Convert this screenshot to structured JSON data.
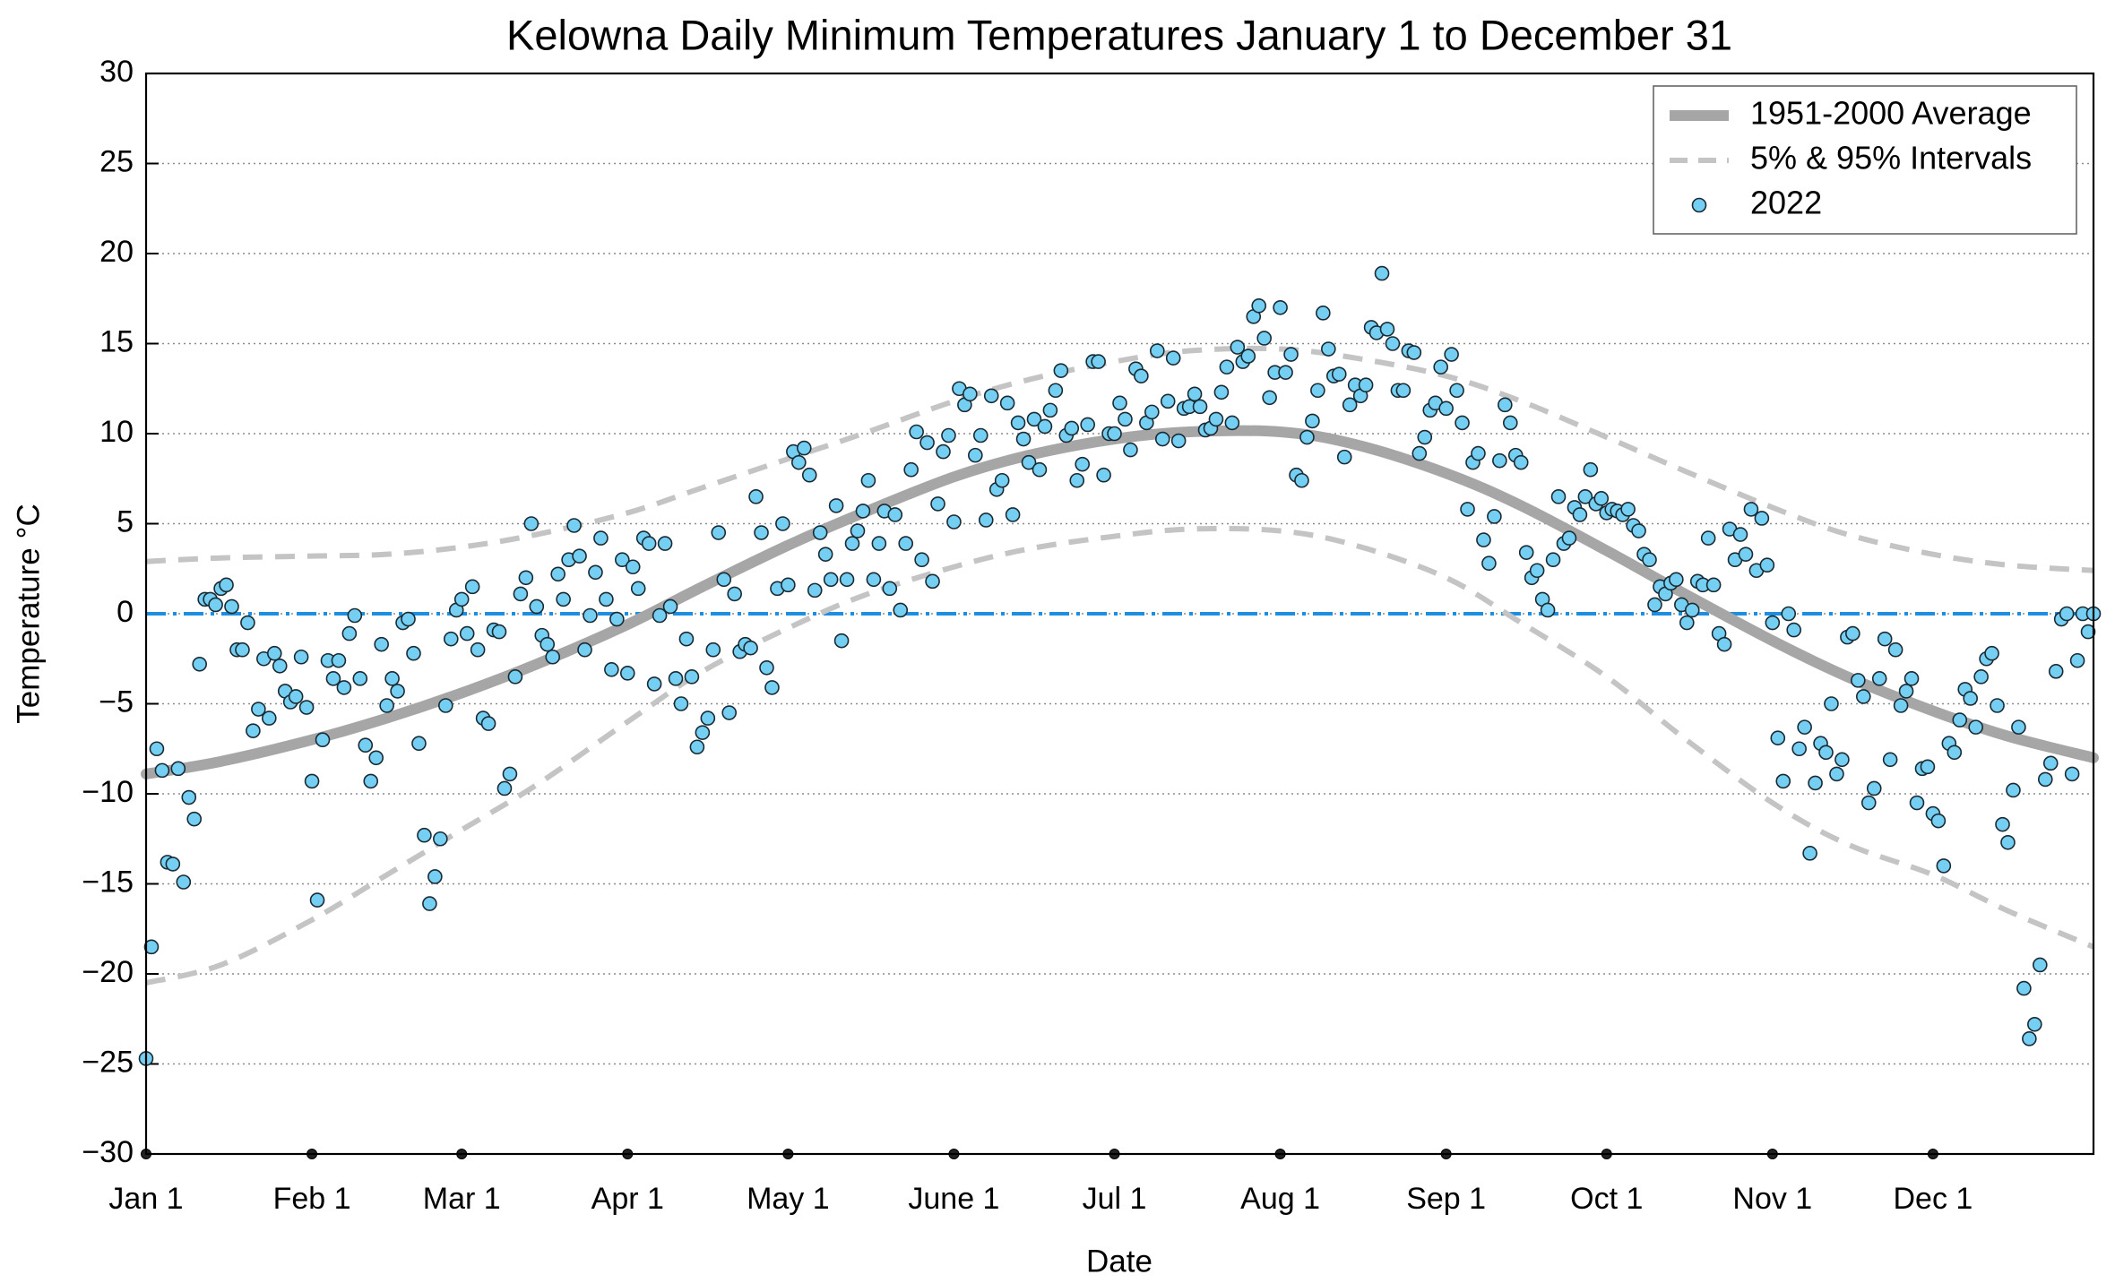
{
  "chart_data": {
    "type": "scatter",
    "title": "Kelowna Daily Minimum Temperatures January 1 to December 31",
    "x_label": "Date",
    "y_label": "Temperature °C",
    "xlim": [
      1,
      365
    ],
    "ylim": [
      -30,
      30
    ],
    "xticks": [
      {
        "value": 1,
        "label": "Jan 1"
      },
      {
        "value": 32,
        "label": "Feb 1"
      },
      {
        "value": 60,
        "label": "Mar 1"
      },
      {
        "value": 91,
        "label": "Apr 1"
      },
      {
        "value": 121,
        "label": "May 1"
      },
      {
        "value": 152,
        "label": "June 1"
      },
      {
        "value": 182,
        "label": "Jul 1"
      },
      {
        "value": 213,
        "label": "Aug 1"
      },
      {
        "value": 244,
        "label": "Sep 1"
      },
      {
        "value": 274,
        "label": "Oct 1"
      },
      {
        "value": 305,
        "label": "Nov 1"
      },
      {
        "value": 335,
        "label": "Dec 1"
      }
    ],
    "yticks": [
      {
        "value": -30,
        "label": "−30"
      },
      {
        "value": -25,
        "label": "−25"
      },
      {
        "value": -20,
        "label": "−20"
      },
      {
        "value": -15,
        "label": "−15"
      },
      {
        "value": -10,
        "label": "−10"
      },
      {
        "value": -5,
        "label": "−5"
      },
      0,
      5,
      10,
      15,
      20,
      25,
      30
    ],
    "grid": true,
    "legend": "upper right",
    "reference_line": {
      "value": 0,
      "color": "#1e8fe0"
    },
    "series": [
      {
        "name": "1951-2000 Average",
        "kind": "line",
        "color": "#a6a6a6",
        "x": [
          1,
          15,
          32,
          46,
          60,
          74,
          91,
          105,
          121,
          135,
          152,
          166,
          182,
          196,
          213,
          227,
          244,
          258,
          274,
          288,
          305,
          319,
          335,
          349,
          365
        ],
        "values": [
          -8.9,
          -8.2,
          -7.0,
          -5.8,
          -4.4,
          -2.8,
          -0.6,
          1.5,
          3.8,
          5.6,
          7.6,
          8.8,
          9.7,
          10.1,
          10.1,
          9.4,
          7.8,
          6.0,
          3.5,
          1.2,
          -1.5,
          -3.5,
          -5.4,
          -6.8,
          -8.0
        ]
      },
      {
        "name": "5% & 95% Intervals",
        "kind": "band-lines",
        "color": "#c4c4c4",
        "x": [
          1,
          15,
          32,
          46,
          60,
          74,
          91,
          105,
          121,
          135,
          152,
          166,
          182,
          196,
          213,
          227,
          244,
          258,
          274,
          288,
          305,
          319,
          335,
          349,
          365
        ],
        "upper": [
          2.9,
          3.1,
          3.2,
          3.3,
          3.7,
          4.4,
          5.6,
          7.0,
          8.6,
          10.0,
          11.8,
          13.0,
          14.0,
          14.6,
          14.7,
          14.2,
          13.2,
          11.8,
          9.8,
          8.0,
          5.9,
          4.4,
          3.3,
          2.7,
          2.4
        ],
        "lower": [
          -20.5,
          -19.5,
          -17.0,
          -14.5,
          -12.0,
          -9.5,
          -6.0,
          -3.2,
          -0.8,
          1.0,
          2.6,
          3.6,
          4.3,
          4.7,
          4.6,
          3.8,
          2.0,
          -0.5,
          -3.5,
          -6.8,
          -10.5,
          -12.8,
          -14.5,
          -16.5,
          -18.5
        ]
      },
      {
        "name": "2022",
        "kind": "points",
        "color": "#74cff2",
        "x": [
          1,
          2,
          3,
          4,
          5,
          6,
          7,
          8,
          9,
          10,
          11,
          12,
          13,
          14,
          15,
          16,
          17,
          18,
          19,
          20,
          21,
          22,
          23,
          24,
          25,
          26,
          27,
          28,
          29,
          30,
          31,
          32,
          33,
          34,
          35,
          36,
          37,
          38,
          39,
          40,
          41,
          42,
          43,
          44,
          45,
          46,
          47,
          48,
          49,
          50,
          51,
          52,
          53,
          54,
          55,
          56,
          57,
          58,
          59,
          60,
          61,
          62,
          63,
          64,
          65,
          66,
          67,
          68,
          69,
          70,
          71,
          72,
          73,
          74,
          75,
          76,
          77,
          78,
          79,
          80,
          81,
          82,
          83,
          84,
          85,
          86,
          87,
          88,
          89,
          90,
          91,
          92,
          93,
          94,
          95,
          96,
          97,
          98,
          99,
          100,
          101,
          102,
          103,
          104,
          105,
          106,
          107,
          108,
          109,
          110,
          111,
          112,
          113,
          114,
          115,
          116,
          117,
          118,
          119,
          120,
          121,
          122,
          123,
          124,
          125,
          126,
          127,
          128,
          129,
          130,
          131,
          132,
          133,
          134,
          135,
          136,
          137,
          138,
          139,
          140,
          141,
          142,
          143,
          144,
          145,
          146,
          147,
          148,
          149,
          150,
          151,
          152,
          153,
          154,
          155,
          156,
          157,
          158,
          159,
          160,
          161,
          162,
          163,
          164,
          165,
          166,
          167,
          168,
          169,
          170,
          171,
          172,
          173,
          174,
          175,
          176,
          177,
          178,
          179,
          180,
          181,
          182,
          183,
          184,
          185,
          186,
          187,
          188,
          189,
          190,
          191,
          192,
          193,
          194,
          195,
          196,
          197,
          198,
          199,
          200,
          201,
          202,
          203,
          204,
          205,
          206,
          207,
          208,
          209,
          210,
          211,
          212,
          213,
          214,
          215,
          216,
          217,
          218,
          219,
          220,
          221,
          222,
          223,
          224,
          225,
          226,
          227,
          228,
          229,
          230,
          231,
          232,
          233,
          234,
          235,
          236,
          237,
          238,
          239,
          240,
          241,
          242,
          243,
          244,
          245,
          246,
          247,
          248,
          249,
          250,
          251,
          252,
          253,
          254,
          255,
          256,
          257,
          258,
          259,
          260,
          261,
          262,
          263,
          264,
          265,
          266,
          267,
          268,
          269,
          270,
          271,
          272,
          273,
          274,
          275,
          276,
          277,
          278,
          279,
          280,
          281,
          282,
          283,
          284,
          285,
          286,
          287,
          288,
          289,
          290,
          291,
          292,
          293,
          294,
          295,
          296,
          297,
          298,
          299,
          300,
          301,
          302,
          303,
          304,
          305,
          306,
          307,
          308,
          309,
          310,
          311,
          312,
          313,
          314,
          315,
          316,
          317,
          318,
          319,
          320,
          321,
          322,
          323,
          324,
          325,
          326,
          327,
          328,
          329,
          330,
          331,
          332,
          333,
          334,
          335,
          336,
          337,
          338,
          339,
          340,
          341,
          342,
          343,
          344,
          345,
          346,
          347,
          348,
          349,
          350,
          351,
          352,
          353,
          354,
          355,
          356,
          357,
          358,
          359,
          360,
          361,
          362,
          363,
          364,
          365
        ],
        "values": [
          -24.7,
          -18.5,
          -7.5,
          -8.7,
          -13.8,
          -13.9,
          -8.6,
          -14.9,
          -10.2,
          -11.4,
          -2.8,
          0.8,
          0.8,
          0.5,
          1.4,
          1.6,
          0.4,
          -2.0,
          -2.0,
          -0.5,
          -6.5,
          -5.3,
          -2.5,
          -5.8,
          -2.2,
          -2.9,
          -4.3,
          -4.9,
          -4.6,
          -2.4,
          -5.2,
          -9.3,
          -15.9,
          -7.0,
          -2.6,
          -3.6,
          -2.6,
          -4.1,
          -1.1,
          -0.1,
          -3.6,
          -7.3,
          -9.3,
          -8.0,
          -1.7,
          -5.1,
          -3.6,
          -4.3,
          -0.5,
          -0.3,
          -2.2,
          -7.2,
          -12.3,
          -16.1,
          -14.6,
          -12.5,
          -5.1,
          -1.4,
          0.2,
          0.8,
          -1.1,
          1.5,
          -2.0,
          -5.8,
          -6.1,
          -0.9,
          -1.0,
          -9.7,
          -8.9,
          -3.5,
          1.1,
          2.0,
          5.0,
          0.4,
          -1.2,
          -1.7,
          -2.4,
          2.2,
          0.8,
          3.0,
          4.9,
          3.2,
          -2.0,
          -0.1,
          2.3,
          4.2,
          0.8,
          -3.1,
          -0.3,
          3.0,
          -3.3,
          2.6,
          1.4,
          4.2,
          3.9,
          -3.9,
          -0.1,
          3.9,
          0.4,
          -3.6,
          -5.0,
          -1.4,
          -3.5,
          -7.4,
          -6.6,
          -5.8,
          -2.0,
          4.5,
          1.9,
          -5.5,
          1.1,
          -2.1,
          -1.7,
          -1.9,
          6.5,
          4.5,
          -3.0,
          -4.1,
          1.4,
          5.0,
          1.6,
          9.0,
          8.4,
          9.2,
          7.7,
          1.3,
          4.5,
          3.3,
          1.9,
          6.0,
          -1.5,
          1.9,
          3.9,
          4.6,
          5.7,
          7.4,
          1.9,
          3.9,
          5.7,
          1.4,
          5.5,
          0.2,
          3.9,
          8.0,
          10.1,
          3.0,
          9.5,
          1.8,
          6.1,
          9.0,
          9.9,
          5.1,
          12.5,
          11.6,
          12.2,
          8.8,
          9.9,
          5.2,
          12.1,
          6.9,
          7.4,
          11.7,
          5.5,
          10.6,
          9.7,
          8.4,
          10.8,
          8.0,
          10.4,
          11.3,
          12.4,
          13.5,
          9.9,
          10.3,
          7.4,
          8.3,
          10.5,
          14.0,
          14.0,
          7.7,
          10.0,
          10.0,
          11.7,
          10.8,
          9.1,
          13.6,
          13.2,
          10.6,
          11.2,
          14.6,
          9.7,
          11.8,
          14.2,
          9.6,
          11.4,
          11.5,
          12.2,
          11.5,
          10.2,
          10.3,
          10.8,
          12.3,
          13.7,
          10.6,
          14.8,
          14.0,
          14.3,
          16.5,
          17.1,
          15.3,
          12.0,
          13.4,
          17.0,
          13.4,
          14.4,
          7.7,
          7.4,
          9.8,
          10.7,
          12.4,
          16.7,
          14.7,
          13.2,
          13.3,
          8.7,
          11.6,
          12.7,
          12.1,
          12.7,
          15.9,
          15.6,
          18.9,
          15.8,
          15.0,
          12.4,
          12.4,
          14.6,
          14.5,
          8.9,
          9.8,
          11.3,
          11.7,
          13.7,
          11.4,
          14.4,
          12.4,
          10.6,
          5.8,
          8.4,
          8.9,
          4.1,
          2.8,
          5.4,
          8.5,
          11.6,
          10.6,
          8.8,
          8.4,
          3.4,
          2.0,
          2.4,
          0.8,
          0.2,
          3.0,
          6.5,
          3.9,
          4.2,
          5.9,
          5.5,
          6.5,
          8.0,
          6.1,
          6.4,
          5.6,
          5.8,
          5.7,
          5.5,
          5.8,
          4.9,
          4.6,
          3.3,
          3.0,
          0.5,
          1.5,
          1.1,
          1.7,
          1.9,
          0.5,
          -0.5,
          0.2,
          1.8,
          1.6,
          4.2,
          1.6,
          -1.1,
          -1.7,
          4.7,
          3.0,
          4.4,
          3.3,
          5.8,
          2.4,
          5.3,
          2.7,
          -0.5,
          -6.9,
          -9.3,
          0.0,
          -0.9,
          -7.5,
          -6.3,
          -13.3,
          -9.4,
          -7.2,
          -7.7,
          -5.0,
          -8.9,
          -8.1,
          -1.3,
          -1.1,
          -3.7,
          -4.6,
          -10.5,
          -9.7,
          -3.6,
          -1.4,
          -8.1,
          -2.0,
          -5.1,
          -4.3,
          -3.6,
          -10.5,
          -8.6,
          -8.5,
          -11.1,
          -11.5,
          -14.0,
          -7.2,
          -7.7,
          -5.9,
          -4.2,
          -4.7,
          -6.3,
          -3.5,
          -2.5,
          -2.2,
          -5.1,
          -11.7,
          -12.7,
          -9.8,
          -6.3,
          -20.8,
          -23.6,
          -22.8,
          -19.5,
          -9.2,
          -8.3,
          -3.2,
          -0.3,
          0.0,
          -8.9,
          -2.6,
          0.0,
          -1.0,
          0.0
        ]
      }
    ]
  }
}
